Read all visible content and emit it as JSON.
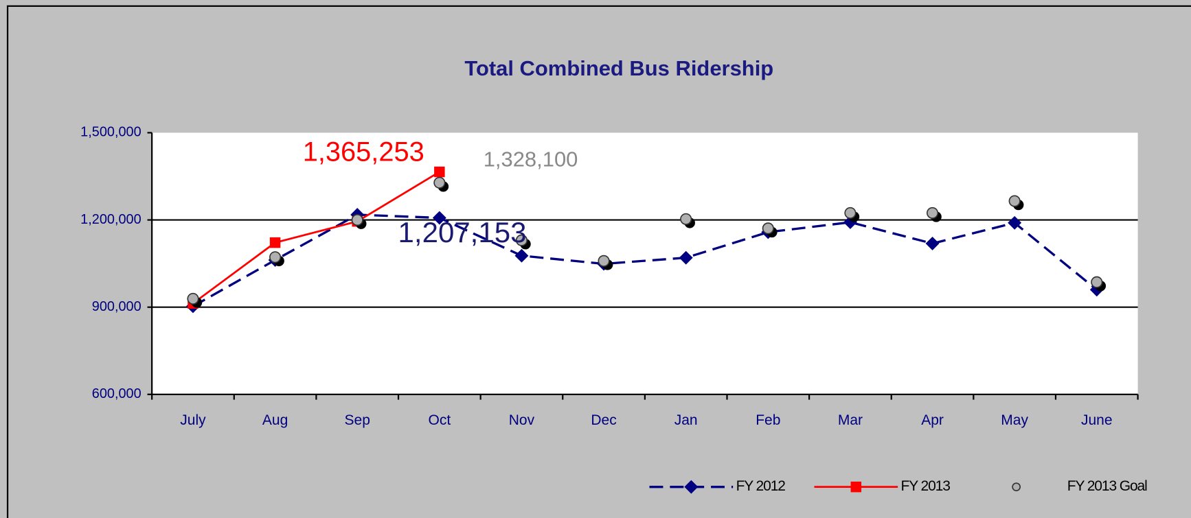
{
  "chart_data": {
    "type": "line",
    "title": "Total Combined Bus Ridership",
    "categories": [
      "July",
      "Aug",
      "Sep",
      "Oct",
      "Nov",
      "Dec",
      "Jan",
      "Feb",
      "Mar",
      "Apr",
      "May",
      "June"
    ],
    "ylim": [
      600000,
      1500000
    ],
    "yticks": [
      {
        "value": 600000,
        "label": "600,000"
      },
      {
        "value": 900000,
        "label": "900,000"
      },
      {
        "value": 1200000,
        "label": "1,200,000"
      },
      {
        "value": 1500000,
        "label": "1,500,000"
      }
    ],
    "grid": true,
    "legend": "lower right",
    "series": [
      {
        "name": "FY 2012",
        "color": "#000080",
        "linestyle": "dashed",
        "marker": "diamond",
        "values": [
          903000,
          1062000,
          1218000,
          1207153,
          1077000,
          1049000,
          1070000,
          1158000,
          1192000,
          1119000,
          1190000,
          960000
        ],
        "value_labels": [
          null,
          null,
          null,
          "1,207,153",
          null,
          null,
          null,
          null,
          null,
          null,
          null,
          null
        ]
      },
      {
        "name": "FY 2013",
        "color": "#ff0000",
        "linestyle": "solid",
        "marker": "square",
        "values": [
          913000,
          1122000,
          1195000,
          1365253,
          null,
          null,
          null,
          null,
          null,
          null,
          null,
          null
        ],
        "value_labels": [
          null,
          null,
          null,
          "1,365,253",
          null,
          null,
          null,
          null,
          null,
          null,
          null,
          null
        ]
      },
      {
        "name": "FY 2013 Goal",
        "color": "#b0b0b0",
        "linestyle": "none",
        "marker": "circle",
        "values": [
          929000,
          1072000,
          1200000,
          1328100,
          1130000,
          1059000,
          1203000,
          1171000,
          1224000,
          1224000,
          1265000,
          986000
        ],
        "value_labels": [
          null,
          null,
          null,
          "1,328,100",
          null,
          null,
          null,
          null,
          null,
          null,
          null,
          null
        ]
      }
    ]
  }
}
